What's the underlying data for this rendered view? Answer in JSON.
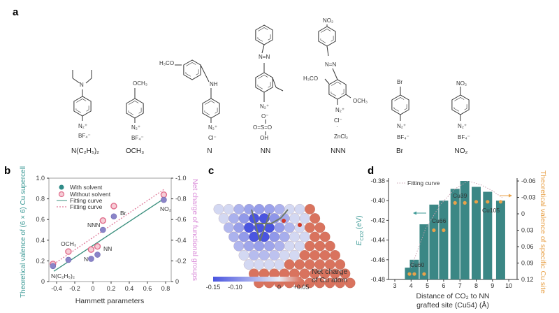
{
  "panels": {
    "a": "a",
    "b": "b",
    "c": "c",
    "d": "d"
  },
  "compounds": [
    {
      "name": "N(C₂H₅)₂",
      "texts": [
        "N",
        "N₂⁺",
        "BF₄⁻"
      ]
    },
    {
      "name": "OCH₃",
      "texts": [
        "OCH₃",
        "N₂⁺",
        "BF₄⁻"
      ]
    },
    {
      "name": "N",
      "texts": [
        "H₃CO",
        "NH",
        "N₂⁺",
        "Cl⁻"
      ]
    },
    {
      "name": "NN",
      "texts": [
        "N=N",
        "N₂⁺",
        "O⁻",
        "O=S=O",
        "OH"
      ]
    },
    {
      "name": "NNN",
      "texts": [
        "NO₂",
        "N=N",
        "H₃CO",
        "OCH₃",
        "N₂⁺",
        "Cl⁻",
        "·",
        "ZnCl₂"
      ]
    },
    {
      "name": "Br",
      "texts": [
        "Br",
        "N₂⁺",
        "BF₄⁻"
      ]
    },
    {
      "name": "NO₂",
      "texts": [
        "NO₂",
        "N₂⁺",
        "BF₄⁻"
      ]
    }
  ],
  "chart_data": [
    {
      "type": "scatter",
      "panel": "b",
      "xlabel": "Hammett parameters",
      "ylabel": "Theoretical valence of (6 × 6) Cu supercell",
      "y2label": "Net charge of functional groups",
      "xlim": [
        -0.5,
        0.85
      ],
      "ylim": [
        0,
        1.0
      ],
      "y2lim": [
        0,
        -1.0
      ],
      "xticks": [
        "-0.4",
        "-0.2",
        "0",
        "0.2",
        "0.4",
        "0.6",
        "0.8"
      ],
      "yticks": [
        "0",
        "0.2",
        "0.4",
        "0.6",
        "0.8",
        "1.0"
      ],
      "y2ticks": [
        "0",
        "-0.2",
        "-0.4",
        "-0.6",
        "-0.8",
        "-1.0"
      ],
      "legend": [
        "With solvent",
        "Without solvent",
        "Fitting curve",
        "Fitting curve"
      ],
      "legend_position": "top-left",
      "point_labels": [
        "N(C₂H₅)₂",
        "OCH₃",
        "N",
        "NN",
        "NNN",
        "Br",
        "NO₂"
      ],
      "x": [
        -0.44,
        -0.27,
        -0.02,
        0.05,
        0.11,
        0.23,
        0.78
      ],
      "series": [
        {
          "name": "With solvent",
          "axis": "left",
          "values": [
            0.15,
            0.21,
            0.22,
            0.26,
            0.5,
            0.63,
            0.79
          ],
          "color": "#8a84c8"
        },
        {
          "name": "Without solvent",
          "axis": "right",
          "values": [
            -0.17,
            -0.29,
            -0.31,
            -0.34,
            -0.59,
            -0.73,
            -0.84
          ],
          "color": "#e06b8a"
        }
      ],
      "fits": [
        {
          "name": "Fitting curve",
          "style": "solid",
          "color": "#3a8f7d",
          "points": [
            [
              -0.43,
              0.1
            ],
            [
              0.78,
              0.8
            ]
          ]
        },
        {
          "name": "Fitting curve",
          "style": "dotted",
          "color": "#e07a9a",
          "points": [
            [
              -0.43,
              -0.17
            ],
            [
              0.78,
              -0.89
            ]
          ]
        }
      ],
      "colors": {
        "left_axis": "#3d9a96",
        "right_axis": "#d98ad8"
      }
    },
    {
      "type": "bar",
      "panel": "d",
      "xlabel": "Distance of CO₂ to NN",
      "xlabel2": "grafted site (Cu54) (Å)",
      "ylabel": "E",
      "ylabel_sub": "CO2",
      "ylabel_unit": "(eV)",
      "y2label": "Theoretical valence of specific Cu site",
      "xlim": [
        3,
        10.4
      ],
      "ylim": [
        -0.48,
        -0.375
      ],
      "y2lim": [
        0.12,
        -0.065
      ],
      "xticks": [
        "3",
        "4",
        "5",
        "6",
        "7",
        "8",
        "9",
        "10"
      ],
      "yticks": [
        "-0.48",
        "-0.46",
        "-0.44",
        "-0.42",
        "-0.40",
        "-0.38"
      ],
      "y2ticks": [
        "0.12",
        "0.09",
        "0.06",
        "0.03",
        "0",
        "-0.03",
        "-0.06"
      ],
      "legend": [
        "Fitting curve"
      ],
      "x": [
        3.9,
        4.2,
        4.8,
        5.4,
        6.0,
        6.7,
        7.3,
        8.0,
        8.7,
        9.5
      ],
      "bar_values": [
        -0.468,
        -0.46,
        -0.424,
        -0.404,
        -0.4,
        -0.388,
        -0.38,
        -0.386,
        -0.391,
        -0.4
      ],
      "valence_values": [
        0.11,
        0.11,
        0.11,
        0.03,
        0.03,
        -0.02,
        -0.02,
        -0.022,
        -0.022,
        -0.022
      ],
      "site_labels": [
        "Cu60",
        "Cu66",
        "Cu39",
        "Cu105"
      ],
      "colors": {
        "bars": "#3b8785",
        "points": "#e8a24a",
        "left_axis": "#3d9a96",
        "right_axis": "#e8a24a"
      }
    }
  ],
  "panel_c": {
    "colorbar_title_1": "Net charge",
    "colorbar_title_2": "of Cu atom",
    "colorbar_ticks": [
      "-0.15",
      "-0.10",
      "0",
      "+0.05"
    ],
    "colorbar_range": [
      -0.15,
      0.05
    ],
    "colors": {
      "negative": "#4a55e0",
      "neutral": "#e8ecf5",
      "positive": "#d9735e"
    }
  }
}
